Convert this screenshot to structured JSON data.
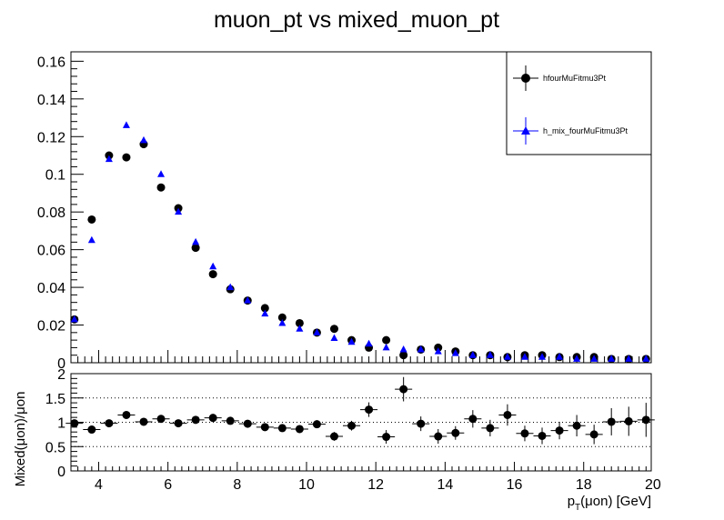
{
  "title": "muon_pt vs mixed_muon_pt",
  "chart_data": [
    {
      "type": "scatter",
      "panel": "top",
      "ylim": [
        0,
        0.165
      ],
      "xlim": [
        3.2,
        19.95
      ],
      "yticks": [
        "0",
        "0.02",
        "0.04",
        "0.06",
        "0.08",
        "0.1",
        "0.12",
        "0.14",
        "0.16"
      ],
      "legend_position": "top-right",
      "x": [
        3.3,
        3.8,
        4.3,
        4.8,
        5.3,
        5.8,
        6.3,
        6.8,
        7.3,
        7.8,
        8.3,
        8.8,
        9.3,
        9.8,
        10.3,
        10.8,
        11.3,
        11.8,
        12.3,
        12.8,
        13.3,
        13.8,
        14.3,
        14.8,
        15.3,
        15.8,
        16.3,
        16.8,
        17.3,
        17.8,
        18.3,
        18.8,
        19.3,
        19.8
      ],
      "series": [
        {
          "name": "hfourMuFitmu3Pt",
          "marker": "circle",
          "color": "#000000",
          "values": [
            0.023,
            0.076,
            0.11,
            0.109,
            0.116,
            0.093,
            0.082,
            0.061,
            0.047,
            0.039,
            0.033,
            0.029,
            0.024,
            0.021,
            0.016,
            0.018,
            0.012,
            0.008,
            0.012,
            0.004,
            0.007,
            0.008,
            0.006,
            0.004,
            0.004,
            0.003,
            0.004,
            0.004,
            0.003,
            0.003,
            0.003,
            0.002,
            0.002,
            0.002
          ]
        },
        {
          "name": "h_mix_fourMuFitmu3Pt",
          "marker": "triangle",
          "color": "#0000ff",
          "values": [
            0.023,
            0.065,
            0.108,
            0.126,
            0.118,
            0.1,
            0.08,
            0.064,
            0.051,
            0.04,
            0.033,
            0.026,
            0.021,
            0.018,
            0.016,
            0.013,
            0.011,
            0.01,
            0.008,
            0.007,
            0.007,
            0.006,
            0.005,
            0.004,
            0.004,
            0.003,
            0.003,
            0.003,
            0.003,
            0.002,
            0.002,
            0.002,
            0.002,
            0.002
          ]
        }
      ]
    },
    {
      "type": "scatter",
      "panel": "ratio",
      "ylabel": "Mixed(μon)/μon",
      "xlabel": "p_T(μon) [GeV]",
      "ylim": [
        0,
        2
      ],
      "xlim": [
        3.2,
        19.95
      ],
      "yticks": [
        "0",
        "0.5",
        "1",
        "1.5",
        "2"
      ],
      "xticks": [
        "4",
        "6",
        "8",
        "10",
        "12",
        "14",
        "16",
        "18",
        "20"
      ],
      "grid": "dotted horizontal at 0.5, 1, 1.5",
      "x": [
        3.3,
        3.8,
        4.3,
        4.8,
        5.3,
        5.8,
        6.3,
        6.8,
        7.3,
        7.8,
        8.3,
        8.8,
        9.3,
        9.8,
        10.3,
        10.8,
        11.3,
        11.8,
        12.3,
        12.8,
        13.3,
        13.8,
        14.3,
        14.8,
        15.3,
        15.8,
        16.3,
        16.8,
        17.3,
        17.8,
        18.3,
        18.8,
        19.3,
        19.8
      ],
      "values": [
        0.98,
        0.85,
        0.98,
        1.15,
        1.01,
        1.07,
        0.98,
        1.05,
        1.09,
        1.03,
        0.97,
        0.9,
        0.88,
        0.86,
        0.96,
        0.71,
        0.93,
        1.26,
        0.7,
        1.68,
        0.97,
        0.71,
        0.78,
        1.07,
        0.88,
        1.15,
        0.77,
        0.72,
        0.83,
        0.93,
        0.75,
        1.01,
        1.02,
        1.05
      ],
      "errors": [
        0.04,
        0.03,
        0.03,
        0.03,
        0.03,
        0.03,
        0.03,
        0.04,
        0.04,
        0.04,
        0.05,
        0.05,
        0.06,
        0.07,
        0.08,
        0.09,
        0.1,
        0.15,
        0.14,
        0.25,
        0.15,
        0.15,
        0.14,
        0.18,
        0.17,
        0.22,
        0.16,
        0.17,
        0.18,
        0.22,
        0.2,
        0.28,
        0.3,
        0.35
      ],
      "color": "#000000"
    }
  ]
}
